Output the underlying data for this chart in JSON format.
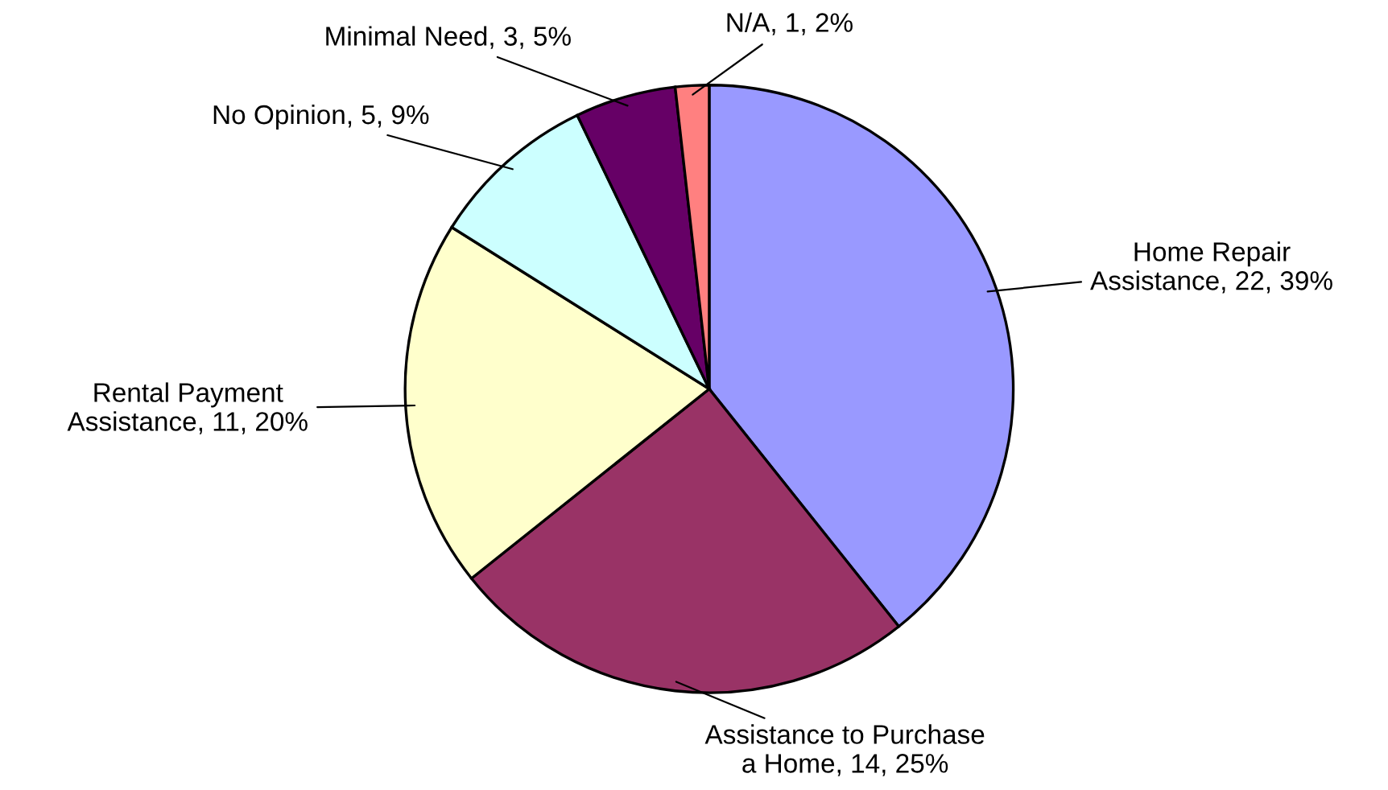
{
  "chart_data": {
    "type": "pie",
    "categories": [
      "Home Repair Assistance",
      "Assistance to Purchase a Home",
      "Rental Payment Assistance",
      "No Opinion",
      "Minimal Need",
      "N/A"
    ],
    "values": [
      22,
      14,
      11,
      5,
      3,
      1
    ],
    "value_labels": [
      "22, 39%",
      "14, 25%",
      "11, 20%",
      "5, 9%",
      "3, 5%",
      "1, 2%"
    ],
    "colors": [
      "#9999ff",
      "#993366",
      "#ffffcc",
      "#ccffff",
      "#660066",
      "#ff8080"
    ],
    "legend": false
  }
}
